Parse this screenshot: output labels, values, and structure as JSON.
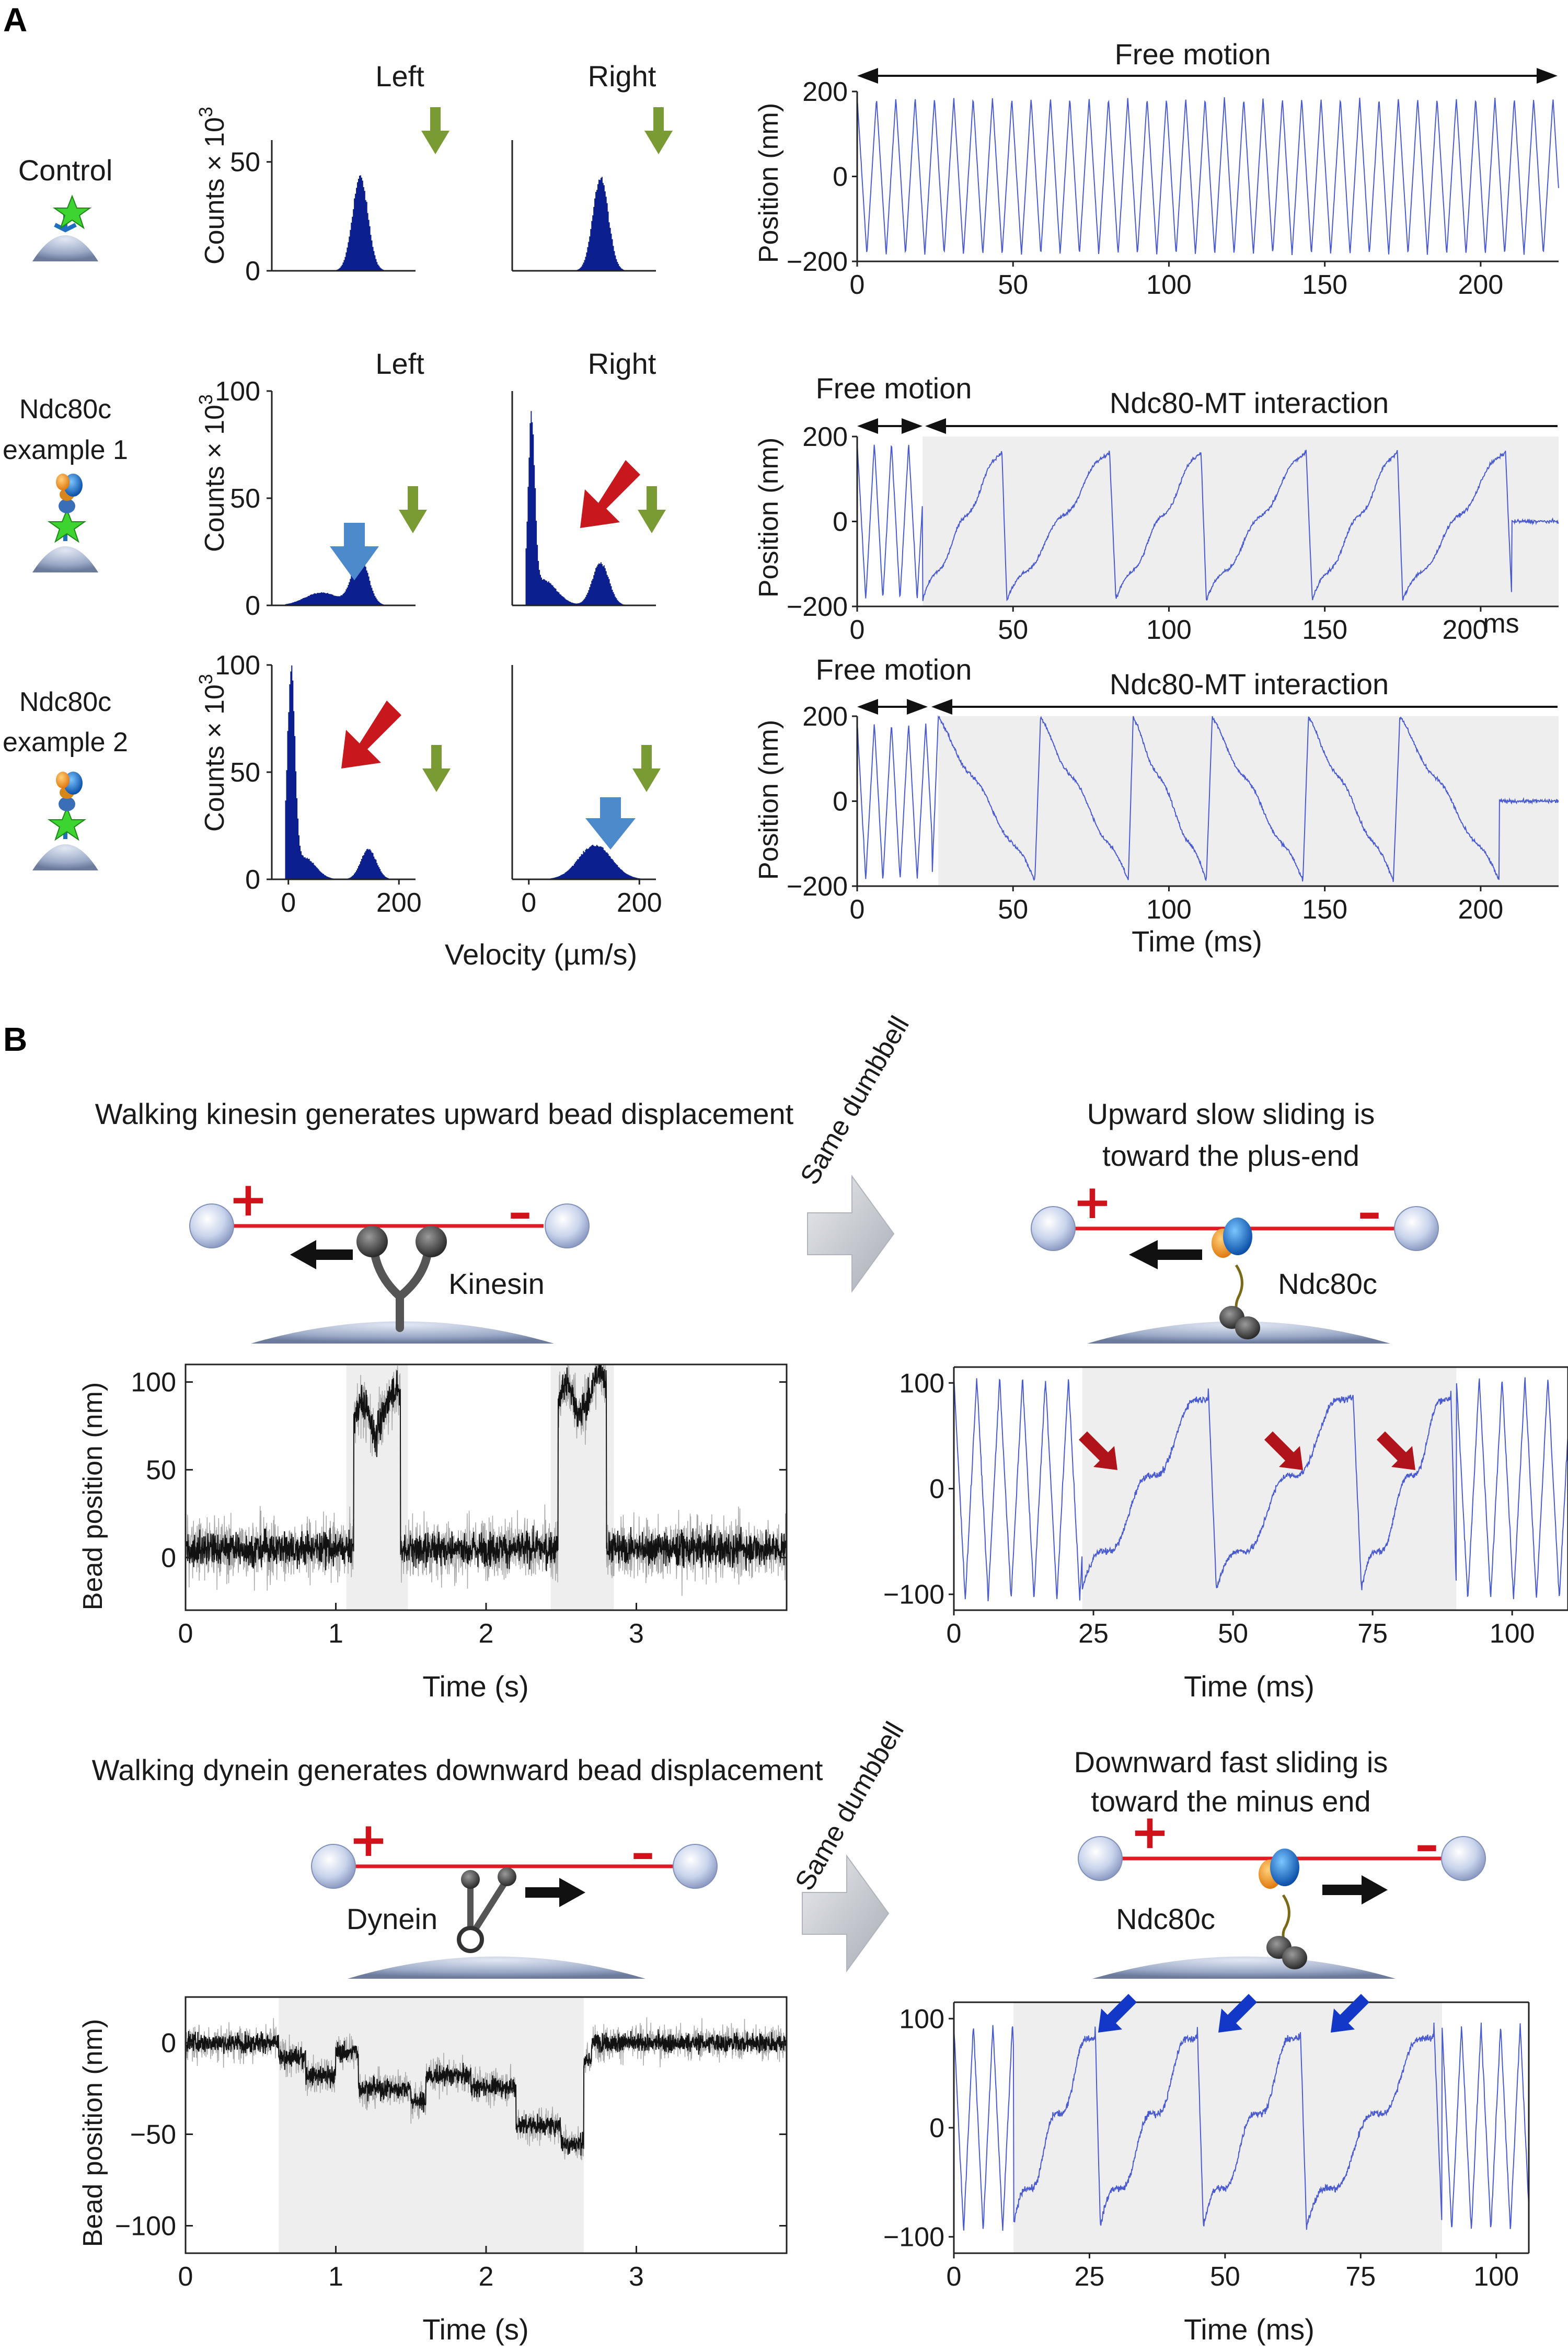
{
  "figure": {
    "panel_a": {
      "letter": "A",
      "col_left": "Left",
      "col_right": "Right",
      "rows": [
        {
          "line1": "Control",
          "line2": ""
        },
        {
          "line1": "Ndc80c",
          "line2": "example 1"
        },
        {
          "line1": "Ndc80c",
          "line2": "example 2"
        }
      ],
      "hist_ylabel": "Counts × 10",
      "hist_ylabel_sup": "3",
      "hist_xlabel": "Velocity (µm/s)",
      "trace_ylabel": "Position (nm)",
      "trace_xlabel": "Time (ms)",
      "free_motion": "Free motion",
      "interaction": "Ndc80-MT interaction",
      "ms_unit": "ms"
    },
    "panel_b": {
      "letter": "B",
      "kinesin_caption": "Walking kinesin generates upward bead displacement",
      "upward_caption_1": "Upward slow sliding is",
      "upward_caption_2": "toward the plus-end",
      "dynein_caption": "Walking dynein generates downward bead displacement",
      "downward_caption_1": "Downward fast sliding is",
      "downward_caption_2": "toward the minus end",
      "same_dumbbell": "Same dumbbell",
      "kinesin_label": "Kinesin",
      "dynein_label": "Dynein",
      "ndc80c_label": "Ndc80c",
      "bead_ylabel": "Bead  position (nm)",
      "time_s": "Time (s)",
      "time_ms": "Time (ms)",
      "plus_sign": "+",
      "minus_sign": "–"
    }
  },
  "chart_data": [
    {
      "id": "A-control-left",
      "type": "bar",
      "title": "Left",
      "xlim": [
        -30,
        230
      ],
      "ylim": [
        0,
        60
      ],
      "yticks": [
        0,
        50
      ],
      "xticks": [],
      "peaks": [
        {
          "center": 130,
          "height": 43,
          "width": 14
        }
      ]
    },
    {
      "id": "A-control-right",
      "type": "bar",
      "title": "Right",
      "xlim": [
        -30,
        230
      ],
      "ylim": [
        0,
        60
      ],
      "yticks": [],
      "xticks": [],
      "peaks": [
        {
          "center": 130,
          "height": 43,
          "width": 14
        }
      ]
    },
    {
      "id": "A-ex1-left",
      "type": "bar",
      "title": "Left",
      "xlim": [
        -30,
        230
      ],
      "ylim": [
        0,
        100
      ],
      "yticks": [
        0,
        50,
        100
      ],
      "xticks": [],
      "peaks": [
        {
          "center": 60,
          "height": 6,
          "width": 30
        },
        {
          "center": 130,
          "height": 22,
          "width": 15
        }
      ]
    },
    {
      "id": "A-ex1-right",
      "type": "bar",
      "title": "Right",
      "xlim": [
        -30,
        230
      ],
      "ylim": [
        0,
        100
      ],
      "yticks": [],
      "xticks": [],
      "peaks": [
        {
          "center": 5,
          "height": 82,
          "width": 6
        },
        {
          "center": 25,
          "height": 12,
          "width": 25
        },
        {
          "center": 130,
          "height": 20,
          "width": 15
        }
      ]
    },
    {
      "id": "A-ex2-left",
      "type": "bar",
      "title": "",
      "xlim": [
        -30,
        230
      ],
      "ylim": [
        0,
        100
      ],
      "yticks": [
        0,
        50,
        100
      ],
      "xticks": [
        0,
        200
      ],
      "peaks": [
        {
          "center": 5,
          "height": 95,
          "width": 7
        },
        {
          "center": 30,
          "height": 10,
          "width": 20
        },
        {
          "center": 145,
          "height": 14,
          "width": 14
        }
      ]
    },
    {
      "id": "A-ex2-right",
      "type": "bar",
      "title": "",
      "xlim": [
        -30,
        230
      ],
      "ylim": [
        0,
        100
      ],
      "yticks": [],
      "xticks": [
        0,
        200
      ],
      "peaks": [
        {
          "center": 120,
          "height": 16,
          "width": 30
        }
      ]
    },
    {
      "id": "A-trace-control",
      "type": "line",
      "xlim": [
        0,
        225
      ],
      "ylim": [
        -200,
        200
      ],
      "xticks": [
        0,
        50,
        100,
        150,
        200
      ],
      "yticks": [
        -200,
        0,
        200
      ],
      "segments": [
        {
          "kind": "triangle",
          "x0": 0,
          "x1": 225,
          "period": 6.2,
          "amp": 185
        }
      ],
      "shade": []
    },
    {
      "id": "A-trace-ex1",
      "type": "line",
      "xlim": [
        0,
        225
      ],
      "ylim": [
        -200,
        200
      ],
      "xticks": [
        0,
        50,
        100,
        150,
        200
      ],
      "yticks": [
        -200,
        0,
        200
      ],
      "segments": [
        {
          "kind": "triangle",
          "x0": 0,
          "x1": 21,
          "period": 5.5,
          "amp": 185
        },
        {
          "kind": "saw",
          "x0": 21,
          "x1": 225,
          "starts": [
            21,
            48,
            83,
            112,
            146,
            175,
            210
          ],
          "ymin": -185,
          "ymax": 175
        }
      ],
      "shade": [
        [
          21,
          225
        ]
      ]
    },
    {
      "id": "A-trace-ex2",
      "type": "line",
      "xlim": [
        0,
        225
      ],
      "ylim": [
        -200,
        200
      ],
      "xticks": [
        0,
        50,
        100,
        150,
        200
      ],
      "yticks": [
        -200,
        0,
        200
      ],
      "segments": [
        {
          "kind": "triangle",
          "x0": 0,
          "x1": 24,
          "period": 5.5,
          "amp": 185
        },
        {
          "kind": "sawdown",
          "x0": 24,
          "x1": 225,
          "starts": [
            24,
            57,
            87,
            112,
            143,
            172,
            206
          ],
          "ymin": -185,
          "ymax": 190
        }
      ],
      "shade": [
        [
          26,
          225
        ]
      ]
    },
    {
      "id": "B-kinesin",
      "type": "line",
      "xlim": [
        0,
        4.0
      ],
      "ylim": [
        -30,
        110
      ],
      "xticks": [
        0,
        1,
        2,
        3
      ],
      "yticks": [
        0,
        50,
        100
      ],
      "events": [
        {
          "x0": 1.12,
          "x1": 1.43,
          "level": 78
        },
        {
          "x0": 2.48,
          "x1": 2.8,
          "level": 88
        }
      ],
      "noise": 9
    },
    {
      "id": "B-ndc-up",
      "type": "line",
      "xlim": [
        0,
        110
      ],
      "ylim": [
        -115,
        115
      ],
      "xticks": [
        0,
        25,
        50,
        75,
        100
      ],
      "yticks": [
        -100,
        0,
        100
      ],
      "segments": [
        {
          "kind": "triangle",
          "x0": 0,
          "x1": 23,
          "period": 4.1,
          "amp": 105
        },
        {
          "kind": "saw",
          "x0": 23,
          "x1": 90,
          "starts": [
            23,
            47,
            73,
            90
          ],
          "ymin": -95,
          "ymax": 98
        },
        {
          "kind": "triangle",
          "x0": 90,
          "x1": 110,
          "period": 4.1,
          "amp": 105
        }
      ],
      "shade": [
        [
          23,
          90
        ]
      ]
    },
    {
      "id": "B-dynein",
      "type": "line",
      "xlim": [
        0,
        4.0
      ],
      "ylim": [
        -115,
        25
      ],
      "xticks": [
        0,
        1,
        2,
        3
      ],
      "yticks": [
        -100,
        -50,
        0
      ],
      "noise": 5
    },
    {
      "id": "B-ndc-down",
      "type": "line",
      "xlim": [
        0,
        106
      ],
      "ylim": [
        -115,
        115
      ],
      "xticks": [
        0,
        25,
        50,
        75,
        100
      ],
      "yticks": [
        -100,
        0,
        100
      ],
      "segments": [
        {
          "kind": "triangle",
          "x0": 0,
          "x1": 11,
          "period": 3.6,
          "amp": 95
        },
        {
          "kind": "saw",
          "x0": 11,
          "x1": 90,
          "starts": [
            11,
            27,
            46,
            65,
            90
          ],
          "ymin": -90,
          "ymax": 95
        },
        {
          "kind": "triangle",
          "x0": 90,
          "x1": 106,
          "period": 3.6,
          "amp": 95
        }
      ],
      "shade": [
        [
          11,
          90
        ]
      ]
    }
  ]
}
